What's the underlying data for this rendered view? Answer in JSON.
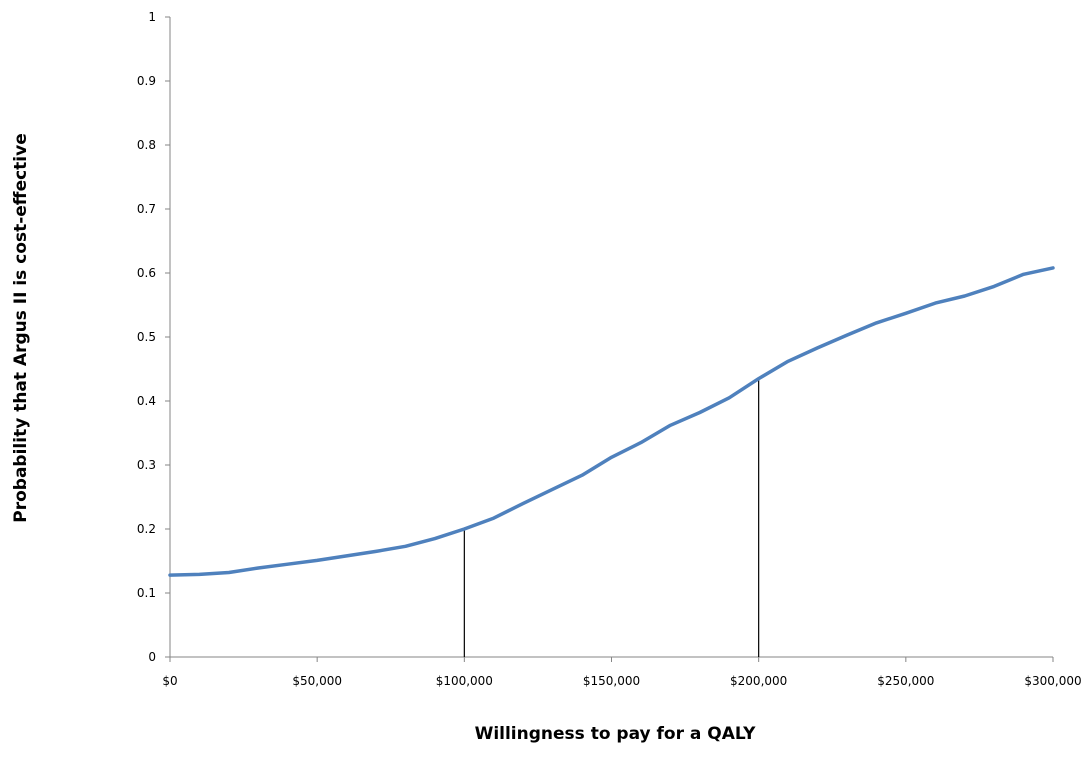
{
  "chart_data": {
    "type": "line",
    "title": "",
    "xlabel": "Willingness to pay for a QALY",
    "ylabel": "Probability that Argus II is cost-effective",
    "xlim": [
      0,
      300000
    ],
    "ylim": [
      0,
      1
    ],
    "x_ticks": [
      0,
      50000,
      100000,
      150000,
      200000,
      250000,
      300000
    ],
    "x_tick_labels": [
      "$0",
      "$50,000",
      "$100,000",
      "$150,000",
      "$200,000",
      "$250,000",
      "$300,000"
    ],
    "y_ticks": [
      0,
      0.1,
      0.2,
      0.3,
      0.4,
      0.5,
      0.6,
      0.7,
      0.8,
      0.9,
      1
    ],
    "y_tick_labels": [
      "0",
      "0.1",
      "0.2",
      "0.3",
      "0.4",
      "0.5",
      "0.6",
      "0.7",
      "0.8",
      "0.9",
      "1"
    ],
    "grid": false,
    "series": [
      {
        "color": "#4F81BD",
        "x": [
          0,
          10000,
          20000,
          30000,
          40000,
          50000,
          60000,
          70000,
          80000,
          90000,
          100000,
          110000,
          120000,
          130000,
          140000,
          150000,
          160000,
          170000,
          180000,
          190000,
          200000,
          210000,
          220000,
          230000,
          240000,
          250000,
          260000,
          270000,
          280000,
          290000,
          300000
        ],
        "y": [
          0.128,
          0.129,
          0.132,
          0.139,
          0.145,
          0.151,
          0.158,
          0.165,
          0.173,
          0.185,
          0.2,
          0.217,
          0.24,
          0.262,
          0.284,
          0.312,
          0.335,
          0.362,
          0.382,
          0.405,
          0.435,
          0.462,
          0.483,
          0.503,
          0.522,
          0.537,
          0.553,
          0.564,
          0.579,
          0.598,
          0.608
        ]
      }
    ],
    "reference_lines": [
      {
        "x": 100000,
        "y": 0.2,
        "color": "#000000"
      },
      {
        "x": 200000,
        "y": 0.435,
        "color": "#000000"
      }
    ]
  }
}
